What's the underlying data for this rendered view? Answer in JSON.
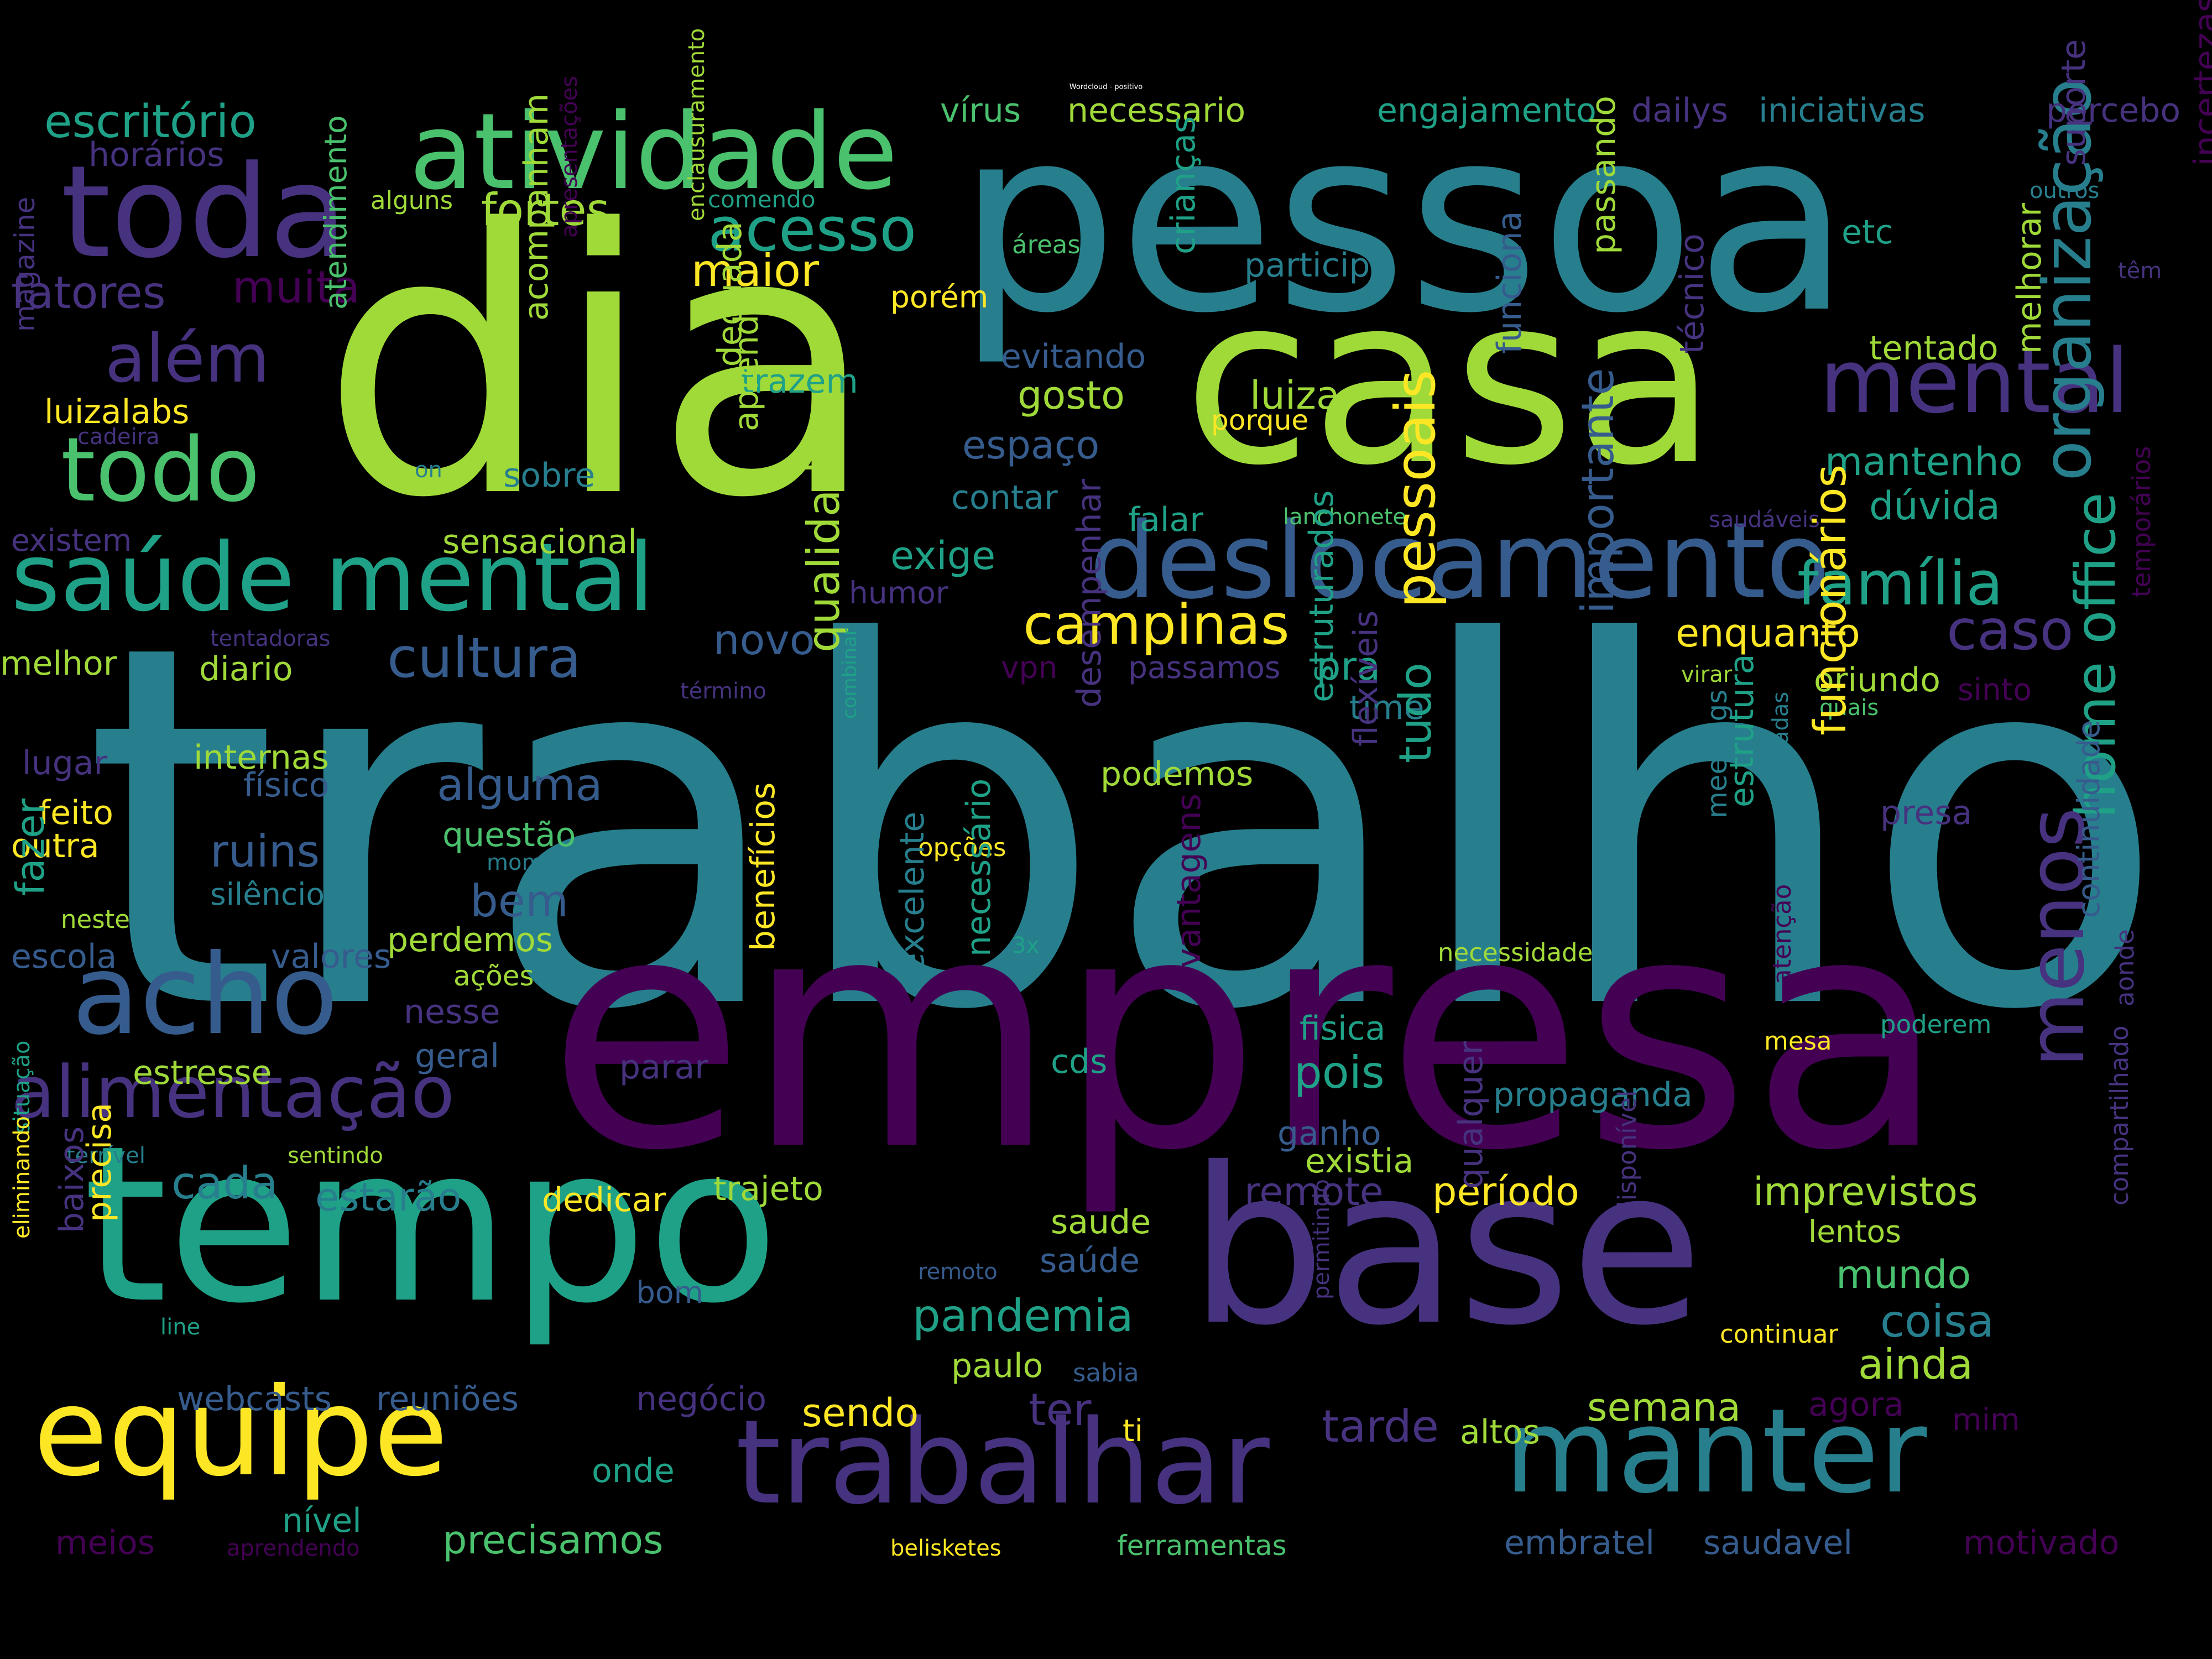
{
  "title": "Wordcloud - positivo",
  "palette": {
    "background": "#000000",
    "dark-purple": "#440154",
    "indigo": "#46327e",
    "blue": "#365c8d",
    "teal-blue": "#277f8e",
    "teal": "#1fa187",
    "green": "#4ac16d",
    "lime": "#a0da39",
    "yellow": "#fde725"
  },
  "words": [
    {
      "text": "trabalho"
    },
    {
      "text": "dia"
    },
    {
      "text": "pessoa"
    },
    {
      "text": "casa"
    },
    {
      "text": "empresa"
    },
    {
      "text": "tempo"
    },
    {
      "text": "base"
    },
    {
      "text": "equipe"
    },
    {
      "text": "trabalhar"
    },
    {
      "text": "manter"
    },
    {
      "text": "deslocamento"
    },
    {
      "text": "saúde mental"
    },
    {
      "text": "toda"
    },
    {
      "text": "atividade"
    },
    {
      "text": "acho"
    },
    {
      "text": "todo"
    },
    {
      "text": "mental"
    },
    {
      "text": "alimentação"
    },
    {
      "text": "organização"
    },
    {
      "text": "home office"
    },
    {
      "text": "menos"
    },
    {
      "text": "campinas"
    },
    {
      "text": "família"
    },
    {
      "text": "cultura"
    },
    {
      "text": "além"
    },
    {
      "text": "acesso"
    },
    {
      "text": "caso"
    },
    {
      "text": "escritório"
    },
    {
      "text": "fatores"
    },
    {
      "text": "maior"
    },
    {
      "text": "fortes"
    },
    {
      "text": "muita"
    },
    {
      "text": "horários"
    },
    {
      "text": "vírus"
    },
    {
      "text": "necessario"
    },
    {
      "text": "engajamento"
    },
    {
      "text": "dailys"
    },
    {
      "text": "iniciativas"
    },
    {
      "text": "percebo"
    },
    {
      "text": "comendo"
    },
    {
      "text": "alguns"
    },
    {
      "text": "crianças"
    },
    {
      "text": "passando"
    },
    {
      "text": "melhorar"
    },
    {
      "text": "incertezas"
    },
    {
      "text": "outros"
    },
    {
      "text": "têm"
    },
    {
      "text": "etc"
    },
    {
      "text": "suporte"
    },
    {
      "text": "áreas"
    },
    {
      "text": "participo"
    },
    {
      "text": "porém"
    },
    {
      "text": "enclausuramento"
    },
    {
      "text": "apresentações"
    },
    {
      "text": "luizalabs"
    },
    {
      "text": "cadeira"
    },
    {
      "text": "magazine"
    },
    {
      "text": "atendimento"
    },
    {
      "text": "acompanham"
    },
    {
      "text": "trazem"
    },
    {
      "text": "evitando"
    },
    {
      "text": "tentado"
    },
    {
      "text": "gosto"
    },
    {
      "text": "luiza"
    },
    {
      "text": "porque"
    },
    {
      "text": "espaço"
    },
    {
      "text": "funciona"
    },
    {
      "text": "técnico"
    },
    {
      "text": "mantenho"
    },
    {
      "text": "adequada"
    },
    {
      "text": "sobre"
    },
    {
      "text": "on"
    },
    {
      "text": "aprendi"
    },
    {
      "text": "contar"
    },
    {
      "text": "dúvida"
    },
    {
      "text": "existem"
    },
    {
      "text": "lanchonete"
    },
    {
      "text": "saudáveis"
    },
    {
      "text": "falar"
    },
    {
      "text": "sensacional"
    },
    {
      "text": "exige"
    },
    {
      "text": "humor"
    },
    {
      "text": "tentadoras"
    },
    {
      "text": "melhor"
    },
    {
      "text": "diario"
    },
    {
      "text": "novo"
    },
    {
      "text": "enquanto"
    },
    {
      "text": "vpn"
    },
    {
      "text": "passamos"
    },
    {
      "text": "pra"
    },
    {
      "text": "pessoais"
    },
    {
      "text": "importante"
    },
    {
      "text": "oriundo"
    },
    {
      "text": "sinto"
    },
    {
      "text": "temporários"
    },
    {
      "text": "término"
    },
    {
      "text": "virar"
    },
    {
      "text": "quais"
    },
    {
      "text": "time"
    },
    {
      "text": "qualidade"
    },
    {
      "text": "combinar"
    },
    {
      "text": "desempenhar"
    },
    {
      "text": "estruturados"
    },
    {
      "text": "flexíveis"
    },
    {
      "text": "tudo"
    },
    {
      "text": "lugar"
    },
    {
      "text": "internas"
    },
    {
      "text": "físico"
    },
    {
      "text": "alguma"
    },
    {
      "text": "podemos"
    },
    {
      "text": "meetings"
    },
    {
      "text": "estrutura"
    },
    {
      "text": "funcionários"
    },
    {
      "text": "presa"
    },
    {
      "text": "feito"
    },
    {
      "text": "outra"
    },
    {
      "text": "questão"
    },
    {
      "text": "momento"
    },
    {
      "text": "opções"
    },
    {
      "text": "agraciadas"
    },
    {
      "text": "ruins"
    },
    {
      "text": "silêncio"
    },
    {
      "text": "bem"
    },
    {
      "text": "fazer"
    },
    {
      "text": "neste"
    },
    {
      "text": "3x"
    },
    {
      "text": "necessidade"
    },
    {
      "text": "continuidade"
    },
    {
      "text": "escola"
    },
    {
      "text": "valores"
    },
    {
      "text": "perdemos"
    },
    {
      "text": "ações"
    },
    {
      "text": "nesse"
    },
    {
      "text": "vantagens"
    },
    {
      "text": "fisica"
    },
    {
      "text": "atenção"
    },
    {
      "text": "poderem"
    },
    {
      "text": "mesa"
    },
    {
      "text": "aonde"
    },
    {
      "text": "geral"
    },
    {
      "text": "benefícios"
    },
    {
      "text": "excelente"
    },
    {
      "text": "necessário"
    },
    {
      "text": "cds"
    },
    {
      "text": "pois"
    },
    {
      "text": "estresse"
    },
    {
      "text": "parar"
    },
    {
      "text": "propaganda"
    },
    {
      "text": "ganho"
    },
    {
      "text": "situação"
    },
    {
      "text": "terrível"
    },
    {
      "text": "sentindo"
    },
    {
      "text": "existia"
    },
    {
      "text": "cada"
    },
    {
      "text": "estarão"
    },
    {
      "text": "dedicar"
    },
    {
      "text": "trajeto"
    },
    {
      "text": "remote"
    },
    {
      "text": "período"
    },
    {
      "text": "imprevistos"
    },
    {
      "text": "saude"
    },
    {
      "text": "lentos"
    },
    {
      "text": "baixos"
    },
    {
      "text": "precisa"
    },
    {
      "text": "saúde"
    },
    {
      "text": "mundo"
    },
    {
      "text": "remoto"
    },
    {
      "text": "qualquer"
    },
    {
      "text": "disponível"
    },
    {
      "text": "compartilhado"
    },
    {
      "text": "eliminando"
    },
    {
      "text": "line"
    },
    {
      "text": "bom"
    },
    {
      "text": "pandemia"
    },
    {
      "text": "coisa"
    },
    {
      "text": "permitindo"
    },
    {
      "text": "continuar"
    },
    {
      "text": "paulo"
    },
    {
      "text": "sabia"
    },
    {
      "text": "ainda"
    },
    {
      "text": "webcasts"
    },
    {
      "text": "reuniões"
    },
    {
      "text": "negócio"
    },
    {
      "text": "sendo"
    },
    {
      "text": "ter"
    },
    {
      "text": "semana"
    },
    {
      "text": "agora"
    },
    {
      "text": "mim"
    },
    {
      "text": "tarde"
    },
    {
      "text": "altos"
    },
    {
      "text": "ti"
    },
    {
      "text": "onde"
    },
    {
      "text": "nível"
    },
    {
      "text": "precisamos"
    },
    {
      "text": "embratel"
    },
    {
      "text": "saudavel"
    },
    {
      "text": "motivado"
    },
    {
      "text": "meios"
    },
    {
      "text": "aprendendo"
    },
    {
      "text": "belisketes"
    },
    {
      "text": "ferramentas"
    }
  ]
}
